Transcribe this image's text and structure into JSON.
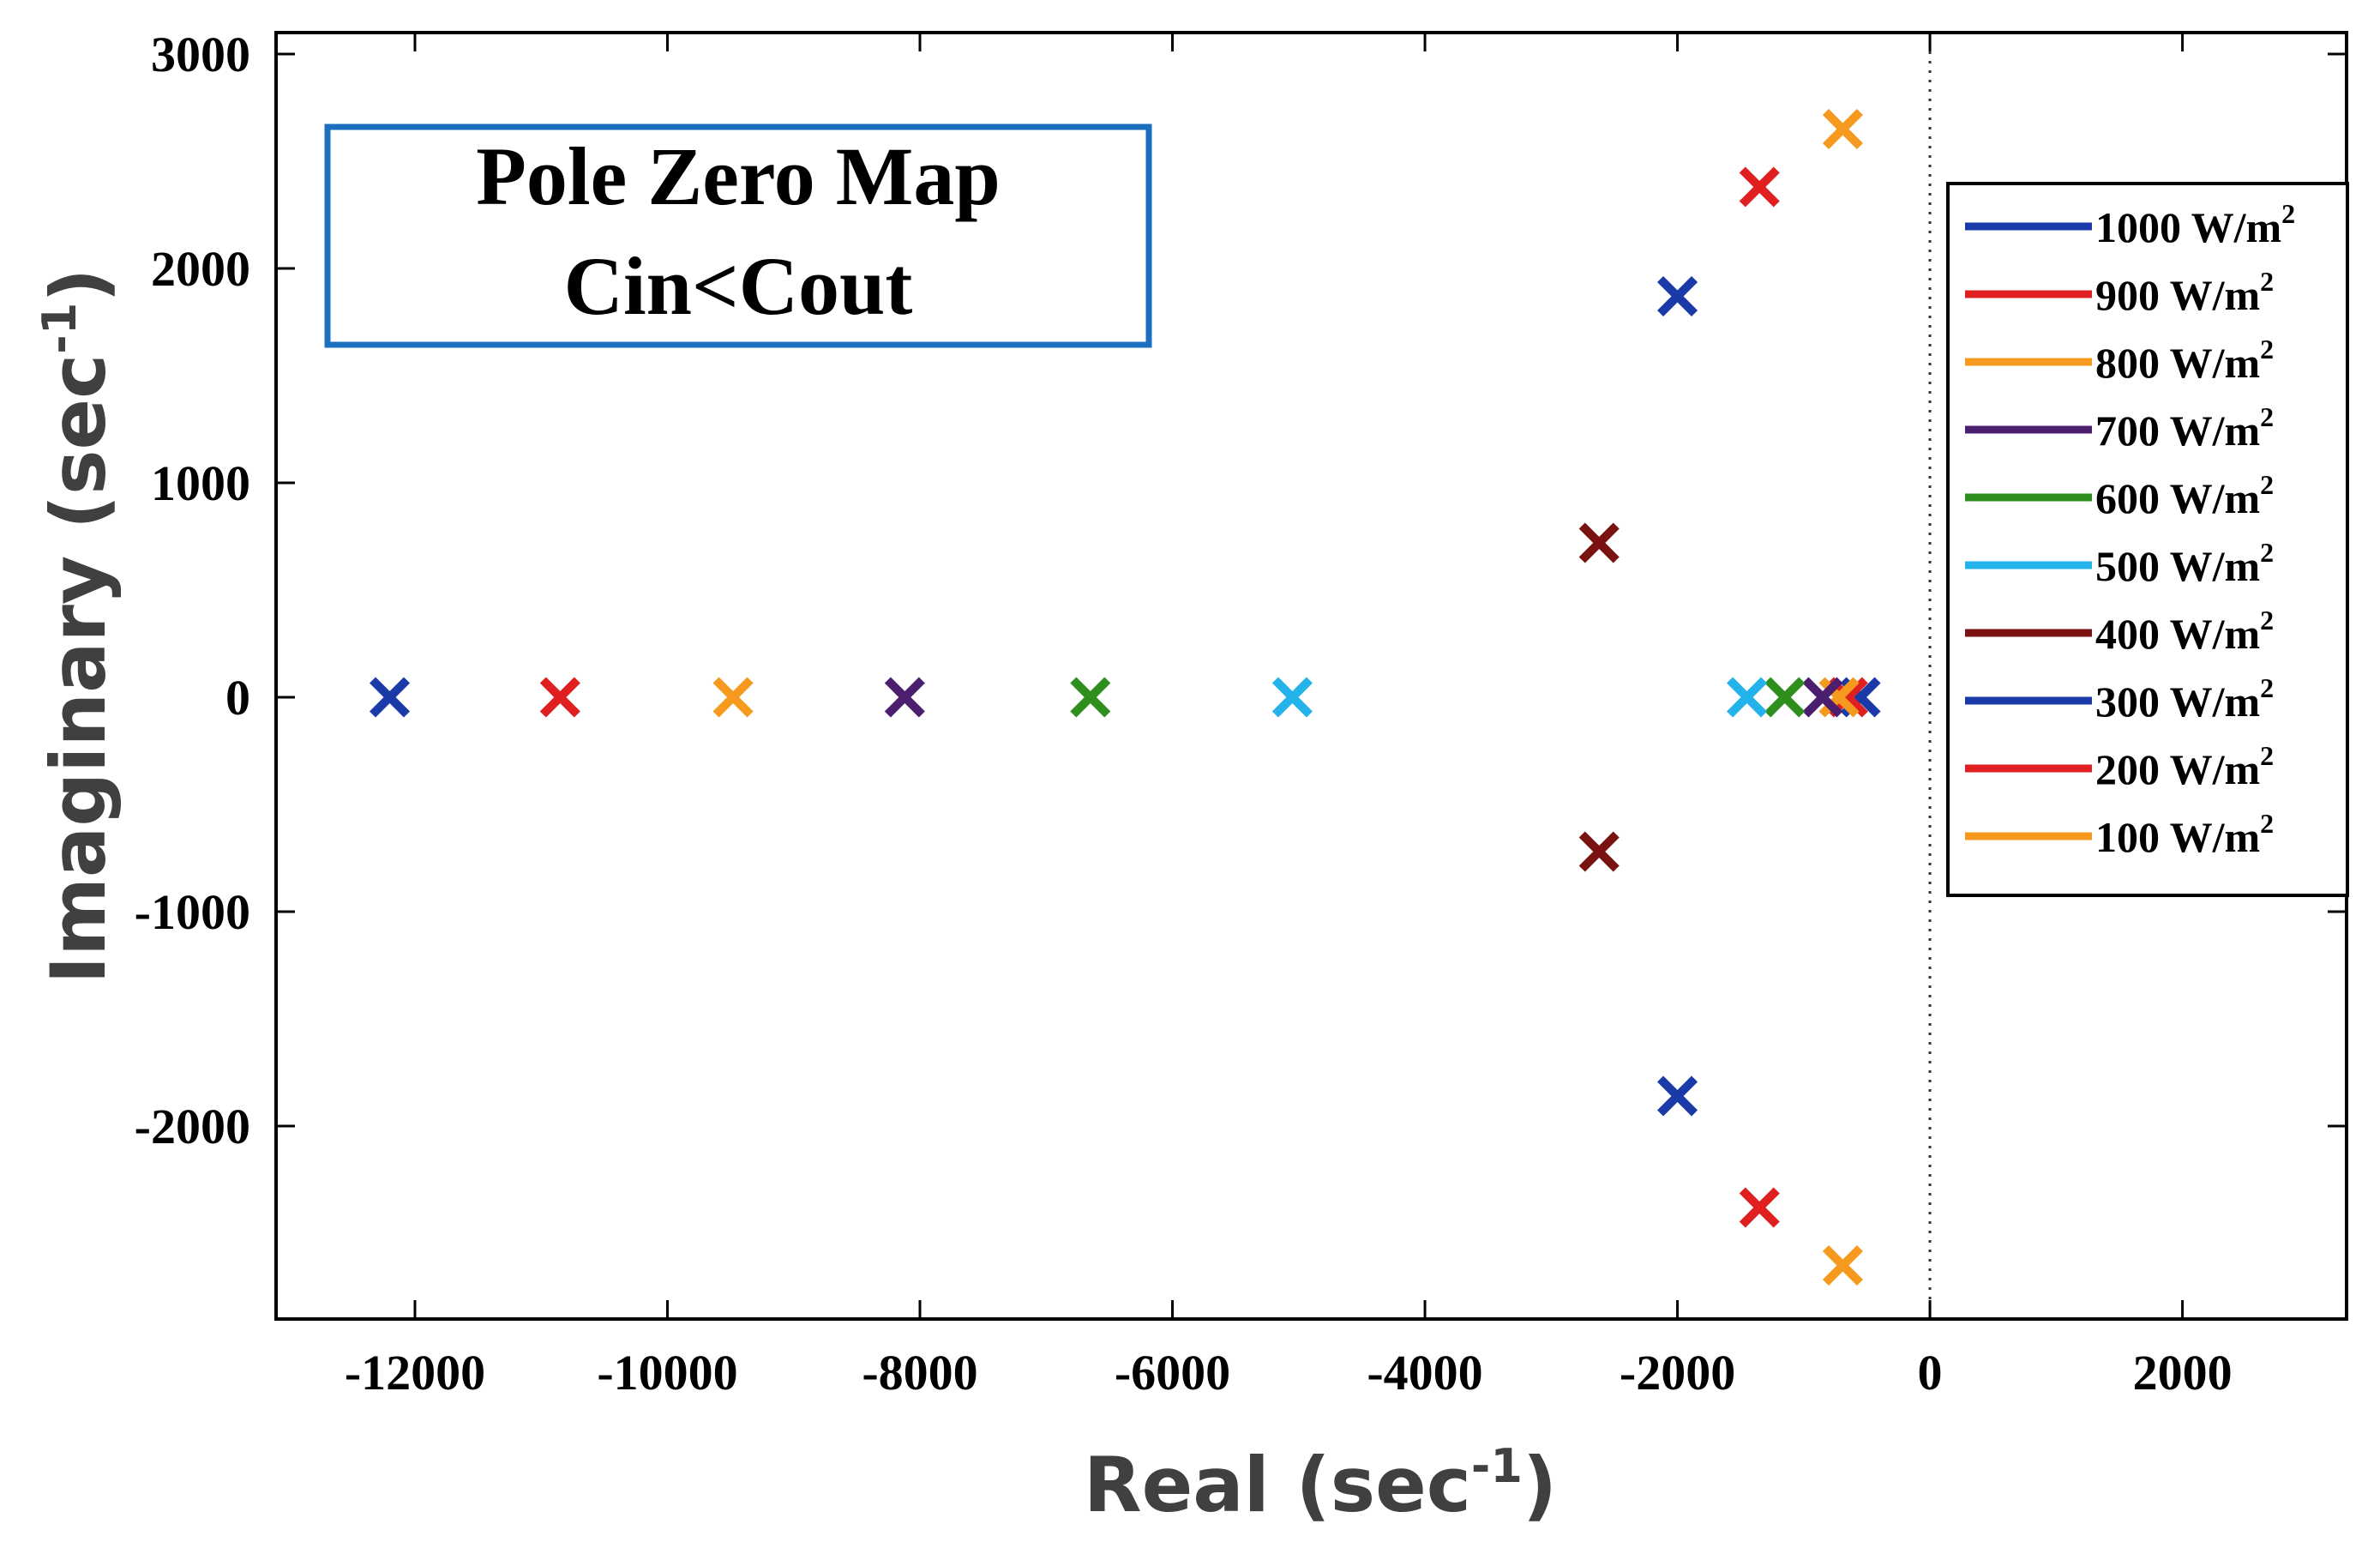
{
  "chart_data": {
    "type": "scatter",
    "title": "Pole Zero Map",
    "annotation": [
      "Pole Zero Map",
      "Cin<Cout"
    ],
    "xlabel": {
      "main": "Real (sec",
      "sup": "-1",
      "end": ")"
    },
    "ylabel": {
      "main": "Imaginary (sec",
      "sup": "-1",
      "end": ")"
    },
    "xlim": [
      -13100,
      3300
    ],
    "ylim": [
      -2900,
      3100
    ],
    "xticks": [
      -12000,
      -10000,
      -8000,
      -6000,
      -4000,
      -2000,
      0,
      2000
    ],
    "xtick_labels": [
      "-12000",
      "-10000",
      "-8000",
      "-6000",
      "-4000",
      "-2000",
      "0",
      "2000"
    ],
    "yticks": [
      3000,
      2000,
      1000,
      0,
      -1000,
      -2000
    ],
    "ytick_labels": [
      "3000",
      "2000",
      "1000",
      "0",
      "-1000",
      "-2000"
    ],
    "marker": "x",
    "reference_line": {
      "x": 0,
      "style": "dotted"
    },
    "legend_position": "top-right",
    "series": [
      {
        "name": "1000 W/m",
        "sup": "2",
        "color": "#1a3aa8",
        "poles": [
          [
            -12200,
            0
          ],
          [
            -550,
            0
          ]
        ]
      },
      {
        "name": "900 W/m",
        "sup": "2",
        "color": "#e02020",
        "poles": [
          [
            -10850,
            0
          ],
          [
            -650,
            0
          ]
        ]
      },
      {
        "name": "800 W/m",
        "sup": "2",
        "color": "#f59a1e",
        "poles": [
          [
            -9480,
            0
          ],
          [
            -720,
            0
          ]
        ]
      },
      {
        "name": "700 W/m",
        "sup": "2",
        "color": "#4b1f6e",
        "poles": [
          [
            -8120,
            0
          ],
          [
            -850,
            0
          ]
        ]
      },
      {
        "name": "600 W/m",
        "sup": "2",
        "color": "#2e8f1f",
        "poles": [
          [
            -6650,
            0
          ],
          [
            -1150,
            0
          ]
        ]
      },
      {
        "name": "500 W/m",
        "sup": "2",
        "color": "#23b2ea",
        "poles": [
          [
            -5050,
            0
          ],
          [
            -1450,
            0
          ]
        ]
      },
      {
        "name": "400 W/m",
        "sup": "2",
        "color": "#7a1212",
        "poles": [
          [
            -2620,
            720
          ],
          [
            -2620,
            -720
          ]
        ]
      },
      {
        "name": "300 W/m",
        "sup": "2",
        "color": "#1a3aa8",
        "poles": [
          [
            -2000,
            1870
          ],
          [
            -2000,
            -1860
          ]
        ]
      },
      {
        "name": "200 W/m",
        "sup": "2",
        "color": "#e02020",
        "poles": [
          [
            -1350,
            2380
          ],
          [
            -1350,
            -2380
          ]
        ]
      },
      {
        "name": "100 W/m",
        "sup": "2",
        "color": "#f59a1e",
        "poles": [
          [
            -690,
            2650
          ],
          [
            -690,
            -2650
          ]
        ]
      }
    ]
  }
}
